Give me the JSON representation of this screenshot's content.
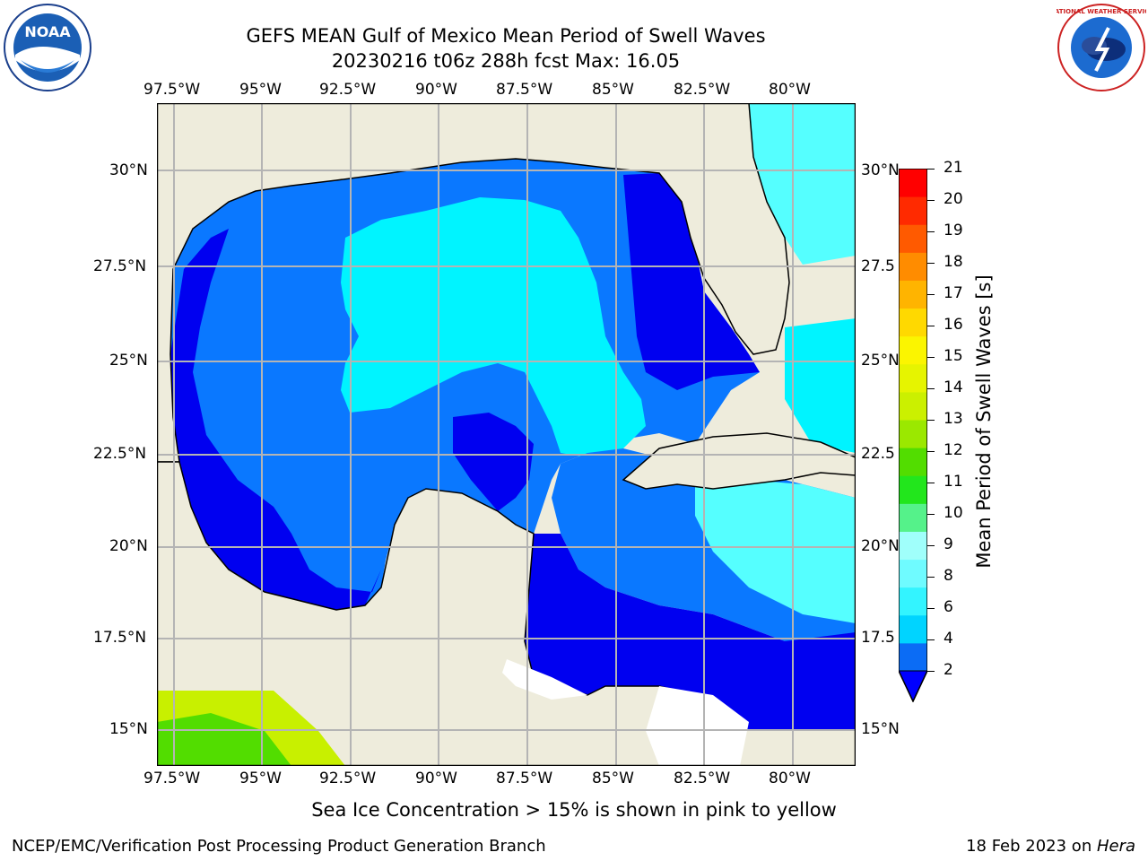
{
  "header": {
    "title_line1": "GEFS MEAN Gulf of Mexico Mean Period of Swell Waves",
    "title_line2": "20230216 t06z 288h fcst   Max: 16.05"
  },
  "logos": {
    "left": "NOAA",
    "right": "NATIONAL WEATHER SERVICE"
  },
  "axes": {
    "lon_labels": [
      "97.5°W",
      "95°W",
      "92.5°W",
      "90°W",
      "87.5°W",
      "85°W",
      "82.5°W",
      "80°W"
    ],
    "lat_labels_left": [
      "30°N",
      "27.5°N",
      "25°N",
      "22.5°N",
      "20°N",
      "17.5°N",
      "15°N"
    ],
    "lat_labels_right": [
      "30°N",
      "27.5",
      "25°N",
      "22.5",
      "20°N",
      "17.5",
      "15°N"
    ]
  },
  "colorbar": {
    "label": "Mean Period of Swell Waves [s]",
    "ticks": [
      "2",
      "4",
      "6",
      "8",
      "9",
      "10",
      "11",
      "12",
      "13",
      "14",
      "15",
      "16",
      "17",
      "18",
      "19",
      "20",
      "21"
    ],
    "colors": [
      "#0b6cf5",
      "#00d4ff",
      "#33f4ff",
      "#6ffbff",
      "#a0fffb",
      "#55f28a",
      "#22e61c",
      "#52dd00",
      "#9be800",
      "#cbf000",
      "#e6f400",
      "#fbf500",
      "#ffd900",
      "#ffb400",
      "#ff8c00",
      "#ff5a00",
      "#ff2a00",
      "#ff0000"
    ],
    "extend_min_color": "#0000ff"
  },
  "map": {
    "land_color": "#eeecdc",
    "deep_blue": "#0000f0",
    "mid_blue": "#0a78ff",
    "cyan": "#00f4ff",
    "light_cyan": "#55ffff",
    "grid_color": "#b4b4b4"
  },
  "footer": {
    "note": "Sea Ice Concentration > 15% is shown in pink to yellow",
    "credit": "NCEP/EMC/Verification Post Processing Product Generation Branch",
    "date": "18 Feb 2023 on ",
    "machine": "Hera"
  }
}
